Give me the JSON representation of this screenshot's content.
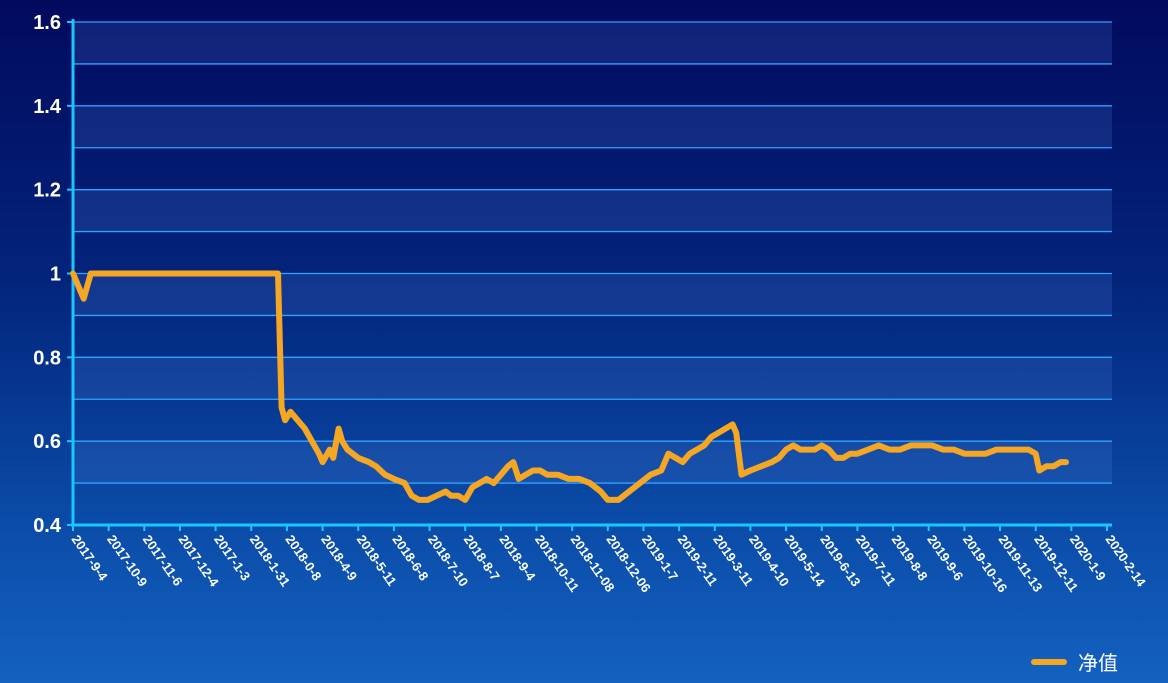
{
  "chart_data": {
    "type": "line",
    "ylim": [
      0.4,
      1.6
    ],
    "yticks": [
      "0.4",
      "0.6",
      "0.8",
      "1",
      "1.2",
      "1.4",
      "1.6"
    ],
    "x_labels": [
      "2017-9-4",
      "2017-10-9",
      "2017-11-6",
      "2017-12-4",
      "2017-1-3",
      "2018-1-31",
      "2018-0-8",
      "2018-4-9",
      "2018-5-11",
      "2018-6-8",
      "2018-7-10",
      "2018-8-7",
      "2018-9-4",
      "2018-10-11",
      "2018-11-08",
      "2018-12-06",
      "2019-1-7",
      "2019-2-11",
      "2019-3-11",
      "2019-4-10",
      "2019-5-14",
      "2019-6-13",
      "2019-7-11",
      "2019-8-8",
      "2019-9-6",
      "2019-10-16",
      "2019-11-13",
      "2019-12-11",
      "2020-1-9",
      "2020-2-14"
    ],
    "grid": true,
    "legend_position": "bottom-right",
    "series": [
      {
        "name": "净值",
        "color": "#f5a623",
        "points": [
          [
            0.0,
            1.0
          ],
          [
            0.3,
            0.94
          ],
          [
            0.5,
            1.0
          ],
          [
            1.0,
            1.0
          ],
          [
            2.0,
            1.0
          ],
          [
            3.0,
            1.0
          ],
          [
            4.0,
            1.0
          ],
          [
            5.0,
            1.0
          ],
          [
            5.75,
            1.0
          ],
          [
            5.85,
            0.68
          ],
          [
            5.95,
            0.65
          ],
          [
            6.1,
            0.67
          ],
          [
            6.3,
            0.65
          ],
          [
            6.5,
            0.63
          ],
          [
            6.7,
            0.6
          ],
          [
            6.9,
            0.57
          ],
          [
            7.0,
            0.55
          ],
          [
            7.2,
            0.58
          ],
          [
            7.3,
            0.56
          ],
          [
            7.45,
            0.63
          ],
          [
            7.55,
            0.6
          ],
          [
            7.7,
            0.58
          ],
          [
            8.0,
            0.56
          ],
          [
            8.3,
            0.55
          ],
          [
            8.5,
            0.54
          ],
          [
            8.75,
            0.52
          ],
          [
            9.0,
            0.51
          ],
          [
            9.3,
            0.5
          ],
          [
            9.5,
            0.47
          ],
          [
            9.7,
            0.46
          ],
          [
            9.95,
            0.46
          ],
          [
            10.2,
            0.47
          ],
          [
            10.45,
            0.48
          ],
          [
            10.6,
            0.47
          ],
          [
            10.8,
            0.47
          ],
          [
            11.0,
            0.46
          ],
          [
            11.2,
            0.49
          ],
          [
            11.4,
            0.5
          ],
          [
            11.6,
            0.51
          ],
          [
            11.8,
            0.5
          ],
          [
            12.0,
            0.52
          ],
          [
            12.2,
            0.54
          ],
          [
            12.35,
            0.55
          ],
          [
            12.5,
            0.51
          ],
          [
            12.7,
            0.52
          ],
          [
            12.9,
            0.53
          ],
          [
            13.1,
            0.53
          ],
          [
            13.3,
            0.52
          ],
          [
            13.6,
            0.52
          ],
          [
            13.9,
            0.51
          ],
          [
            14.2,
            0.51
          ],
          [
            14.5,
            0.5
          ],
          [
            14.8,
            0.48
          ],
          [
            15.0,
            0.46
          ],
          [
            15.3,
            0.46
          ],
          [
            15.6,
            0.48
          ],
          [
            15.9,
            0.5
          ],
          [
            16.2,
            0.52
          ],
          [
            16.5,
            0.53
          ],
          [
            16.7,
            0.57
          ],
          [
            16.9,
            0.56
          ],
          [
            17.1,
            0.55
          ],
          [
            17.3,
            0.57
          ],
          [
            17.5,
            0.58
          ],
          [
            17.7,
            0.59
          ],
          [
            17.9,
            0.61
          ],
          [
            18.1,
            0.62
          ],
          [
            18.3,
            0.63
          ],
          [
            18.5,
            0.64
          ],
          [
            18.6,
            0.62
          ],
          [
            18.75,
            0.52
          ],
          [
            19.0,
            0.53
          ],
          [
            19.3,
            0.54
          ],
          [
            19.6,
            0.55
          ],
          [
            19.8,
            0.56
          ],
          [
            20.0,
            0.58
          ],
          [
            20.2,
            0.59
          ],
          [
            20.4,
            0.58
          ],
          [
            20.6,
            0.58
          ],
          [
            20.8,
            0.58
          ],
          [
            21.0,
            0.59
          ],
          [
            21.2,
            0.58
          ],
          [
            21.4,
            0.56
          ],
          [
            21.6,
            0.56
          ],
          [
            21.8,
            0.57
          ],
          [
            22.0,
            0.57
          ],
          [
            22.3,
            0.58
          ],
          [
            22.6,
            0.59
          ],
          [
            22.9,
            0.58
          ],
          [
            23.2,
            0.58
          ],
          [
            23.5,
            0.59
          ],
          [
            23.8,
            0.59
          ],
          [
            24.1,
            0.59
          ],
          [
            24.4,
            0.58
          ],
          [
            24.7,
            0.58
          ],
          [
            25.0,
            0.57
          ],
          [
            25.3,
            0.57
          ],
          [
            25.6,
            0.57
          ],
          [
            25.9,
            0.58
          ],
          [
            26.2,
            0.58
          ],
          [
            26.5,
            0.58
          ],
          [
            26.8,
            0.58
          ],
          [
            27.0,
            0.57
          ],
          [
            27.1,
            0.53
          ],
          [
            27.3,
            0.54
          ],
          [
            27.5,
            0.54
          ],
          [
            27.7,
            0.55
          ],
          [
            27.85,
            0.55
          ]
        ]
      }
    ]
  }
}
